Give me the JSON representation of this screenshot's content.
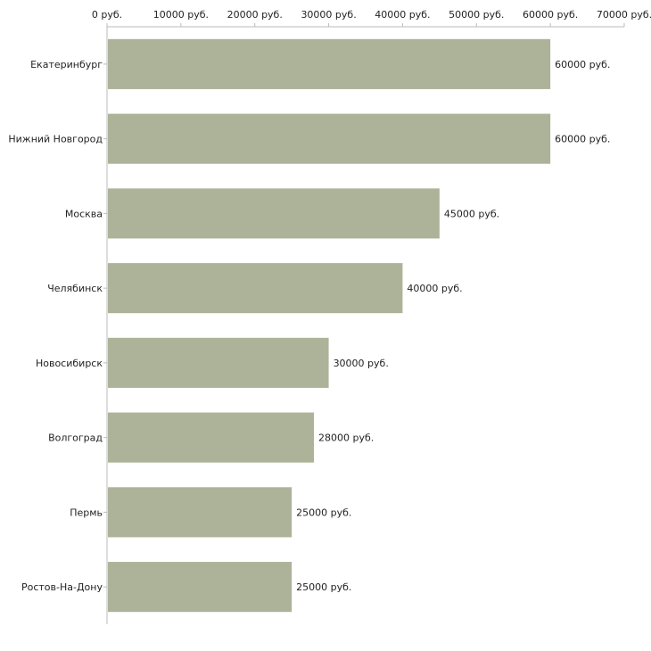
{
  "chart_data": {
    "type": "bar",
    "orientation": "horizontal",
    "categories": [
      "Екатеринбург",
      "Нижний Новгород",
      "Москва",
      "Челябинск",
      "Новосибирск",
      "Волгоград",
      "Пермь",
      "Ростов-На-Дону"
    ],
    "values": [
      60000,
      60000,
      45000,
      40000,
      30000,
      28000,
      25000,
      25000
    ],
    "value_labels": [
      "60000 руб.",
      "60000 руб.",
      "45000 руб.",
      "40000 руб.",
      "30000 руб.",
      "28000 руб.",
      "25000 руб.",
      "25000 руб."
    ],
    "x_ticks": [
      0,
      10000,
      20000,
      30000,
      40000,
      50000,
      60000,
      70000
    ],
    "x_tick_labels": [
      "0 руб.",
      "10000 руб.",
      "20000 руб.",
      "30000 руб.",
      "40000 руб.",
      "50000 руб.",
      "60000 руб.",
      "70000 руб."
    ],
    "xlim": [
      0,
      70000
    ],
    "axis_position": "top",
    "grid": false,
    "title": "",
    "xlabel": "",
    "ylabel": "",
    "colors": {
      "bar": "#acb398",
      "axis": "#bbbbbb",
      "text": "#222222"
    }
  }
}
